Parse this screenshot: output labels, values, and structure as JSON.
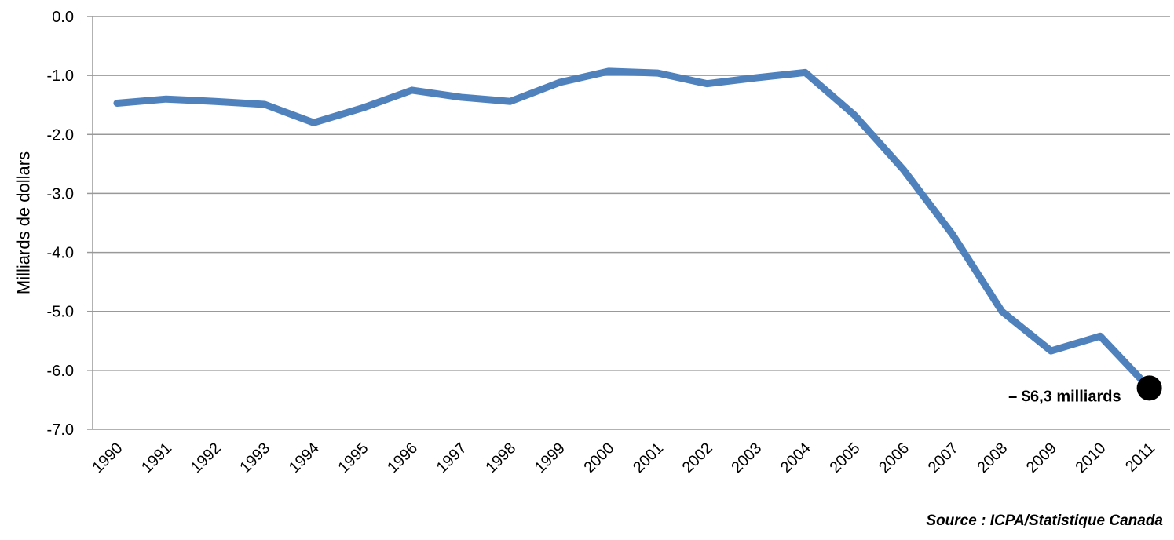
{
  "chart_data": {
    "type": "line",
    "title": "",
    "xlabel": "",
    "ylabel": "Milliards de dollars",
    "ylim": [
      -7.0,
      0.0
    ],
    "yticks": [
      "0.0",
      "-1.0",
      "-2.0",
      "-3.0",
      "-4.0",
      "-5.0",
      "-6.0",
      "-7.0"
    ],
    "ytick_values": [
      0,
      -1,
      -2,
      -3,
      -4,
      -5,
      -6,
      -7
    ],
    "grid": "horizontal",
    "categories": [
      "1990",
      "1991",
      "1992",
      "1993",
      "1994",
      "1995",
      "1996",
      "1997",
      "1998",
      "1999",
      "2000",
      "2001",
      "2002",
      "2003",
      "2004",
      "2005",
      "2006",
      "2007",
      "2008",
      "2009",
      "2010",
      "2011"
    ],
    "series": [
      {
        "color": "#4f81bd",
        "values": [
          -1.47,
          -1.4,
          -1.44,
          -1.49,
          -1.8,
          -1.55,
          -1.25,
          -1.37,
          -1.44,
          -1.12,
          -0.93,
          -0.96,
          -1.14,
          -1.04,
          -0.95,
          -1.67,
          -2.6,
          -3.7,
          -5.0,
          -5.67,
          -5.42,
          -6.3
        ]
      }
    ],
    "marker": {
      "category": "2011",
      "color": "#000000"
    },
    "annotation": "– $6,3 milliards",
    "source": "Source : ICPA/Statistique Canada"
  }
}
